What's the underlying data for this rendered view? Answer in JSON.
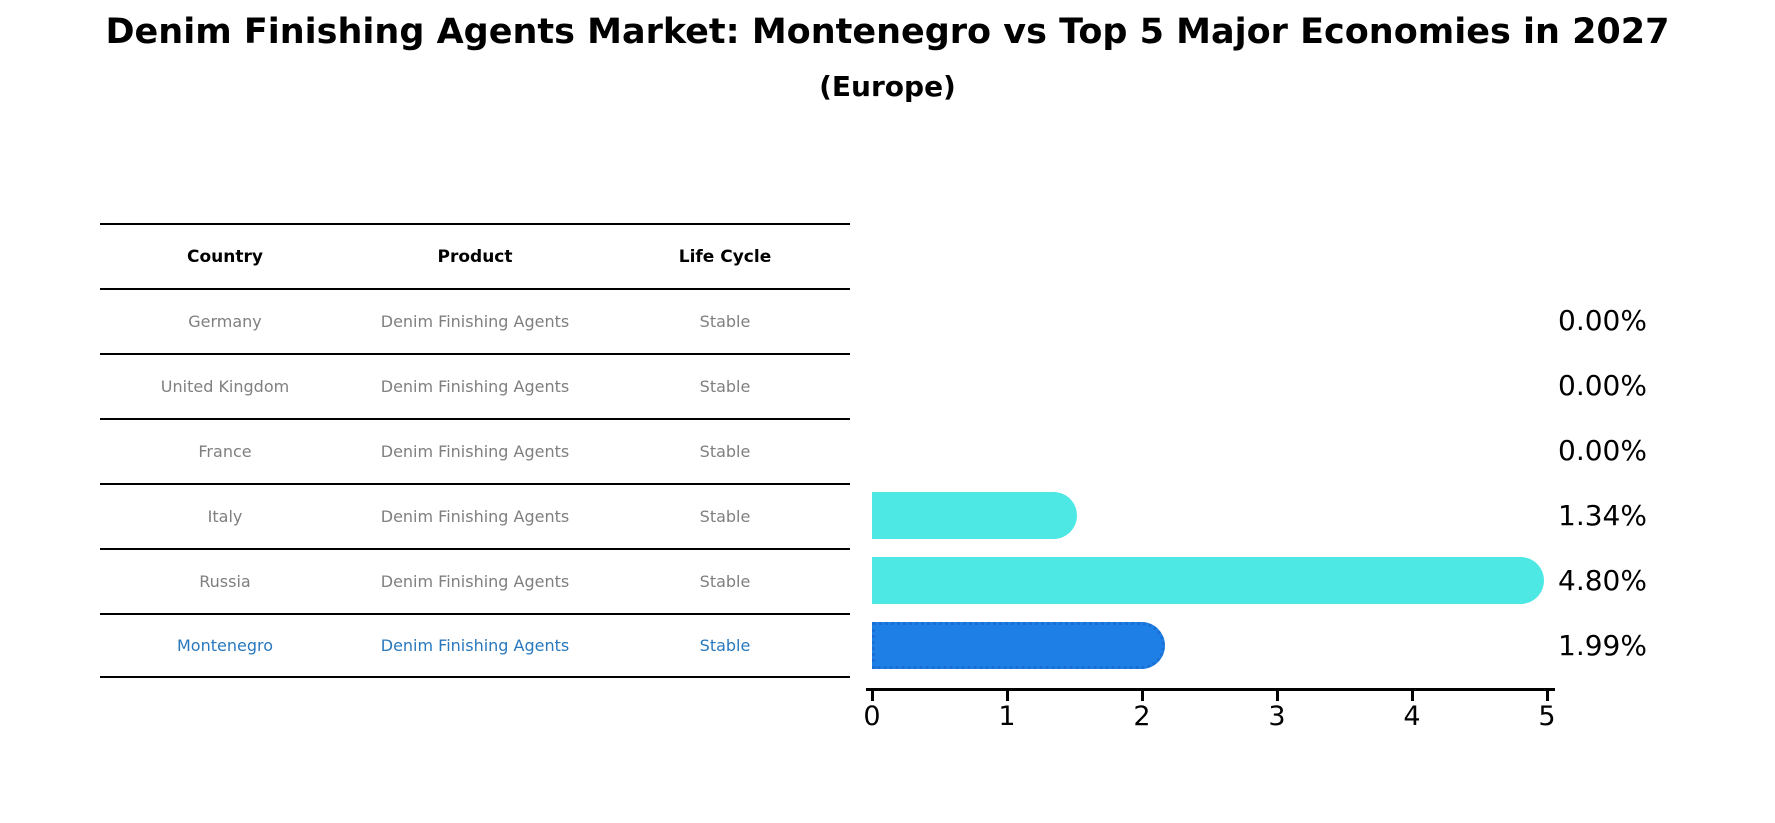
{
  "header": {
    "title": "Denim Finishing Agents Market: Montenegro vs Top 5 Major Economies in 2027",
    "subtitle": "(Europe)"
  },
  "table": {
    "columns": [
      "Country",
      "Product",
      "Life Cycle"
    ],
    "rows": [
      {
        "country": "Germany",
        "product": "Denim Finishing Agents",
        "life_cycle": "Stable",
        "highlight": false
      },
      {
        "country": "United Kingdom",
        "product": "Denim Finishing Agents",
        "life_cycle": "Stable",
        "highlight": false
      },
      {
        "country": "France",
        "product": "Denim Finishing Agents",
        "life_cycle": "Stable",
        "highlight": false
      },
      {
        "country": "Italy",
        "product": "Denim Finishing Agents",
        "life_cycle": "Stable",
        "highlight": false
      },
      {
        "country": "Russia",
        "product": "Denim Finishing Agents",
        "life_cycle": "Stable",
        "highlight": false
      },
      {
        "country": "Montenegro",
        "product": "Denim Finishing Agents",
        "life_cycle": "Stable",
        "highlight": true
      }
    ]
  },
  "chart_data": {
    "type": "bar",
    "orientation": "horizontal",
    "title": "Denim Finishing Agents Market: Montenegro vs Top 5 Major Economies in 2027 (Europe)",
    "categories": [
      "Germany",
      "United Kingdom",
      "France",
      "Italy",
      "Russia",
      "Montenegro"
    ],
    "values": [
      0.0,
      0.0,
      0.0,
      1.34,
      4.8,
      1.99
    ],
    "value_labels": [
      "0.00%",
      "0.00%",
      "0.00%",
      "1.34%",
      "4.80%",
      "1.99%"
    ],
    "xlabel": "",
    "ylabel": "",
    "xlim": [
      0,
      5
    ],
    "x_ticks": [
      "0",
      "1",
      "2",
      "3",
      "4",
      "5"
    ],
    "grid": false,
    "legend": "none",
    "highlight_index": 5,
    "colors": {
      "bar_default": "#4DE8E4",
      "bar_highlight": "#1E7FE6",
      "bar_highlight_border": "#1A6FD4",
      "highlight_text": "#2878BE",
      "row_text": "#7f7f7f",
      "axis": "#000000"
    }
  }
}
